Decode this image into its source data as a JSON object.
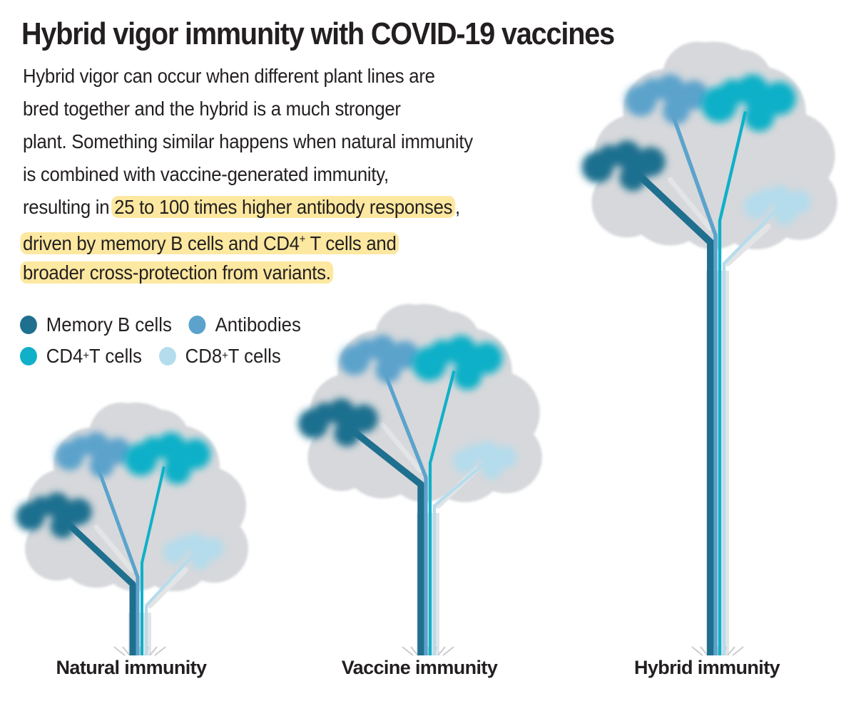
{
  "title": "Hybrid vigor immunity with COVID-19 vaccines",
  "body_text": {
    "line1": "Hybrid vigor can occur when different plant lines are",
    "line2": "bred together and the hybrid is a much stronger",
    "line3": "plant. Something similar happens when natural immunity",
    "line4": "is combined with vaccine-generated immunity,",
    "line5_plain": "resulting in ",
    "line5_highlight": "25 to 100 times higher antibody responses",
    "line5_end": ",",
    "line6": "driven by memory B cells and CD4",
    "line6_sup": "+",
    "line6_end": " T cells and",
    "line7": "broader cross-protection from variants."
  },
  "legend": {
    "memory_b": "Memory B cells",
    "antibodies": "Antibodies",
    "cd4_prefix": "CD4",
    "cd4_sup": "+",
    "cd4_suffix": " T cells",
    "cd8_prefix": "CD8",
    "cd8_sup": "+",
    "cd8_suffix": " T cells"
  },
  "colors": {
    "memory_b": "#1f6f8f",
    "antibodies": "#5ba3cc",
    "cd4_t": "#0fb0c8",
    "cd8_t": "#b4dcec",
    "canopy": "#d6d8db",
    "trunk_gray": "#e2e4e6",
    "highlight": "#fce8a0"
  },
  "trees": {
    "natural": "Natural immunity",
    "vaccine": "Vaccine immunity",
    "hybrid": "Hybrid immunity"
  }
}
